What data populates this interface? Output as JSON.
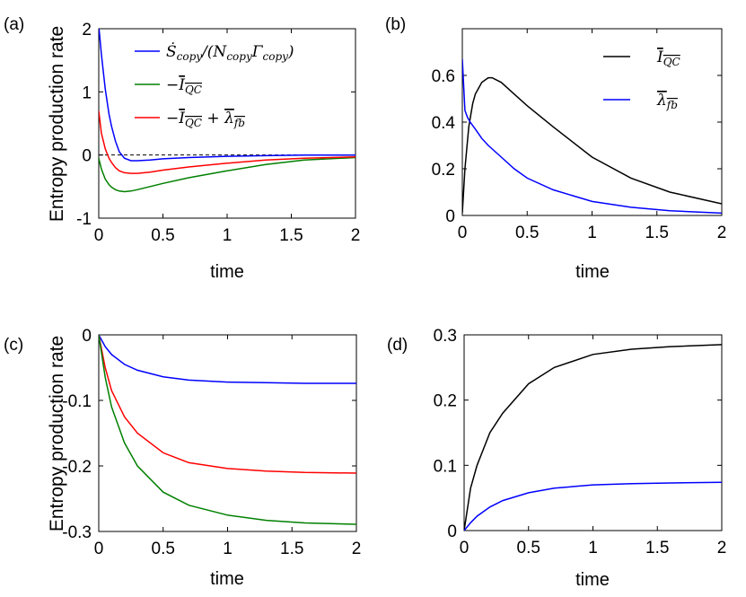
{
  "chart_data": [
    {
      "panel": "(a)",
      "type": "line",
      "xlabel": "time",
      "ylabel": "Entropy production rate",
      "xlim": [
        0,
        2
      ],
      "ylim": [
        -1,
        2
      ],
      "xticks": [
        "0",
        "0.5",
        "1",
        "1.5",
        "2"
      ],
      "yticks": [
        "-1",
        "0",
        "1",
        "2"
      ],
      "reference_line": {
        "y": 0,
        "style": "dashed"
      },
      "legend_position": "top-right",
      "series": [
        {
          "name": "Ṡcopy/(NcopyΓcopy)",
          "color": "#0000ff",
          "x": [
            0,
            0.02,
            0.05,
            0.08,
            0.1,
            0.13,
            0.16,
            0.2,
            0.25,
            0.3,
            0.4,
            0.5,
            0.7,
            1.0,
            1.3,
            1.6,
            2.0
          ],
          "y": [
            2.05,
            1.6,
            1.05,
            0.65,
            0.45,
            0.22,
            0.05,
            -0.05,
            -0.09,
            -0.09,
            -0.08,
            -0.06,
            -0.04,
            -0.02,
            -0.01,
            0.0,
            0.0
          ]
        },
        {
          "name": "−I̅QC",
          "color": "#008000",
          "x": [
            0,
            0.02,
            0.05,
            0.08,
            0.1,
            0.13,
            0.16,
            0.2,
            0.25,
            0.3,
            0.4,
            0.5,
            0.7,
            1.0,
            1.3,
            1.6,
            2.0
          ],
          "y": [
            -0.05,
            -0.22,
            -0.38,
            -0.47,
            -0.51,
            -0.55,
            -0.57,
            -0.58,
            -0.57,
            -0.55,
            -0.5,
            -0.45,
            -0.36,
            -0.25,
            -0.15,
            -0.08,
            -0.04
          ]
        },
        {
          "name": "−I̅QC + λ̅fb",
          "color": "#ff0000",
          "x": [
            0,
            0.02,
            0.05,
            0.08,
            0.1,
            0.13,
            0.16,
            0.2,
            0.25,
            0.3,
            0.4,
            0.5,
            0.7,
            1.0,
            1.3,
            1.6,
            2.0
          ],
          "y": [
            0.7,
            0.35,
            0.1,
            -0.05,
            -0.12,
            -0.2,
            -0.25,
            -0.28,
            -0.29,
            -0.29,
            -0.27,
            -0.24,
            -0.19,
            -0.13,
            -0.08,
            -0.05,
            -0.03
          ]
        }
      ],
      "legend_parts": [
        [
          {
            "t": "Ṡ"
          },
          {
            "t": "copy",
            "sub": true
          },
          {
            "t": "/(N"
          },
          {
            "t": "copy",
            "sub": true
          },
          {
            "t": "Γ"
          },
          {
            "t": "copy",
            "sub": true
          },
          {
            "t": ")"
          }
        ],
        [
          {
            "t": "−"
          },
          {
            "t": "I",
            "over": true
          },
          {
            "t": "QC",
            "sub": true,
            "over": true
          }
        ],
        [
          {
            "t": "−"
          },
          {
            "t": "I",
            "over": true
          },
          {
            "t": "QC",
            "sub": true,
            "over": true
          },
          {
            "t": " + "
          },
          {
            "t": "λ",
            "over": true
          },
          {
            "t": "fb",
            "sub": true,
            "over": true
          }
        ]
      ]
    },
    {
      "panel": "(b)",
      "type": "line",
      "xlabel": "time",
      "ylabel": "",
      "xlim": [
        0,
        2
      ],
      "ylim": [
        0,
        0.8
      ],
      "xticks": [
        "0",
        "0.5",
        "1",
        "1.5",
        "2"
      ],
      "yticks": [
        "0",
        "0.2",
        "0.4",
        "0.6"
      ],
      "legend_position": "top-right",
      "series": [
        {
          "name": "I̅QC",
          "color": "#000000",
          "x": [
            0,
            0.02,
            0.05,
            0.08,
            0.1,
            0.15,
            0.2,
            0.23,
            0.3,
            0.4,
            0.5,
            0.7,
            1.0,
            1.3,
            1.6,
            2.0
          ],
          "y": [
            0.01,
            0.2,
            0.38,
            0.48,
            0.52,
            0.57,
            0.59,
            0.59,
            0.57,
            0.52,
            0.47,
            0.38,
            0.25,
            0.16,
            0.1,
            0.05
          ]
        },
        {
          "name": "λ̅fb",
          "color": "#0000ff",
          "x": [
            0,
            0.02,
            0.04,
            0.06,
            0.1,
            0.15,
            0.2,
            0.3,
            0.4,
            0.5,
            0.7,
            1.0,
            1.3,
            1.6,
            2.0
          ],
          "y": [
            0.67,
            0.45,
            0.42,
            0.4,
            0.37,
            0.33,
            0.3,
            0.25,
            0.2,
            0.16,
            0.11,
            0.06,
            0.035,
            0.02,
            0.01
          ]
        }
      ],
      "legend_parts": [
        [
          {
            "t": "I",
            "over": true
          },
          {
            "t": "QC",
            "sub": true,
            "over": true
          }
        ],
        [
          {
            "t": "λ",
            "over": true
          },
          {
            "t": "fb",
            "sub": true,
            "over": true
          }
        ]
      ]
    },
    {
      "panel": "(c)",
      "type": "line",
      "xlabel": "time",
      "ylabel": "Entropy production rate",
      "xlim": [
        0,
        2
      ],
      "ylim": [
        -0.3,
        0
      ],
      "xticks": [
        "0",
        "0.5",
        "1",
        "1.5",
        "2"
      ],
      "yticks": [
        "-0.3",
        "-0.2",
        "-0.1",
        "0"
      ],
      "series": [
        {
          "name": "blue",
          "color": "#0000ff",
          "x": [
            0,
            0.05,
            0.1,
            0.2,
            0.3,
            0.5,
            0.7,
            1.0,
            1.3,
            1.6,
            2.0
          ],
          "y": [
            0,
            -0.018,
            -0.03,
            -0.045,
            -0.054,
            -0.064,
            -0.069,
            -0.072,
            -0.073,
            -0.074,
            -0.074
          ]
        },
        {
          "name": "red",
          "color": "#ff0000",
          "x": [
            0,
            0.05,
            0.1,
            0.2,
            0.3,
            0.5,
            0.7,
            1.0,
            1.3,
            1.6,
            2.0
          ],
          "y": [
            0,
            -0.05,
            -0.085,
            -0.125,
            -0.15,
            -0.18,
            -0.195,
            -0.204,
            -0.208,
            -0.21,
            -0.211
          ]
        },
        {
          "name": "green",
          "color": "#008000",
          "x": [
            0,
            0.05,
            0.1,
            0.2,
            0.3,
            0.5,
            0.7,
            1.0,
            1.3,
            1.6,
            2.0
          ],
          "y": [
            0,
            -0.065,
            -0.11,
            -0.165,
            -0.2,
            -0.24,
            -0.26,
            -0.275,
            -0.283,
            -0.287,
            -0.289
          ]
        }
      ]
    },
    {
      "panel": "(d)",
      "type": "line",
      "xlabel": "time",
      "ylabel": "",
      "xlim": [
        0,
        2
      ],
      "ylim": [
        0,
        0.3
      ],
      "xticks": [
        "0",
        "0.5",
        "1",
        "1.5",
        "2"
      ],
      "yticks": [
        "0",
        "0.1",
        "0.2",
        "0.3"
      ],
      "series": [
        {
          "name": "black",
          "color": "#000000",
          "x": [
            0,
            0.05,
            0.1,
            0.2,
            0.3,
            0.5,
            0.7,
            1.0,
            1.3,
            1.6,
            2.0
          ],
          "y": [
            0,
            0.065,
            0.1,
            0.15,
            0.18,
            0.225,
            0.25,
            0.27,
            0.278,
            0.282,
            0.285
          ]
        },
        {
          "name": "blue",
          "color": "#0000ff",
          "x": [
            0,
            0.05,
            0.1,
            0.2,
            0.3,
            0.5,
            0.7,
            1.0,
            1.3,
            1.6,
            2.0
          ],
          "y": [
            0,
            0.012,
            0.022,
            0.036,
            0.046,
            0.058,
            0.065,
            0.07,
            0.072,
            0.073,
            0.074
          ]
        }
      ]
    }
  ]
}
